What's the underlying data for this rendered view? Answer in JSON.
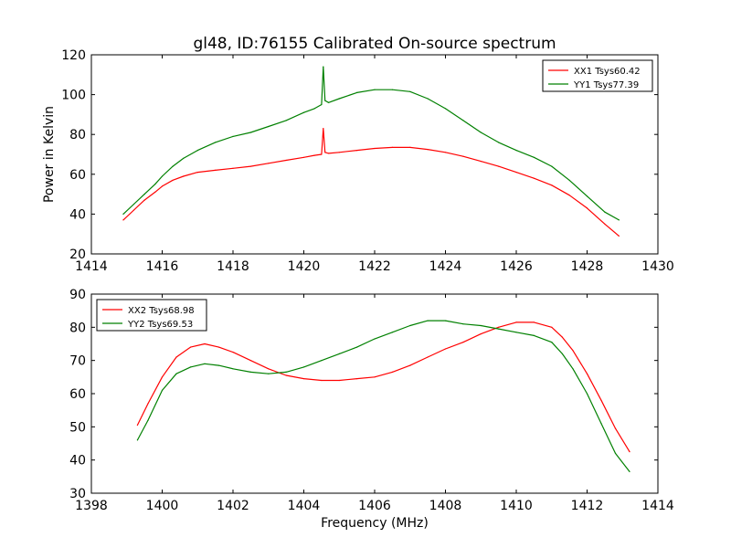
{
  "figure": {
    "title": "gl48, ID:76155 Calibrated On-source spectrum",
    "shared_xlabel": "Frequency (MHz)",
    "colors": {
      "XX": "#ff0000",
      "YY": "#008000"
    }
  },
  "chart_data": [
    {
      "type": "line",
      "title": "gl48, ID:76155 Calibrated On-source spectrum",
      "xlabel": "",
      "ylabel": "Power in Kelvin",
      "xlim": [
        1414,
        1430
      ],
      "ylim": [
        20,
        120
      ],
      "xticks": [
        1414,
        1416,
        1418,
        1420,
        1422,
        1424,
        1426,
        1428,
        1430
      ],
      "yticks": [
        20,
        40,
        60,
        80,
        100,
        120
      ],
      "grid": false,
      "legend": "top-right",
      "series": [
        {
          "name": "XX1 Tsys60.42",
          "color": "#ff0000",
          "x": [
            1414.9,
            1415.2,
            1415.5,
            1415.8,
            1416.0,
            1416.3,
            1416.6,
            1417.0,
            1417.5,
            1418.0,
            1418.5,
            1419.0,
            1419.5,
            1420.0,
            1420.3,
            1420.5,
            1420.55,
            1420.6,
            1420.7,
            1421.0,
            1421.5,
            1422.0,
            1422.5,
            1423.0,
            1423.5,
            1424.0,
            1424.5,
            1425.0,
            1425.5,
            1426.0,
            1426.5,
            1427.0,
            1427.5,
            1428.0,
            1428.5,
            1428.9
          ],
          "y": [
            37,
            42,
            47,
            51,
            54,
            57,
            59,
            61,
            62,
            63,
            64,
            65.5,
            67,
            68.5,
            69.5,
            70,
            83,
            71,
            70.5,
            71,
            72,
            73,
            73.5,
            73.5,
            72.5,
            71,
            69,
            66.5,
            64,
            61,
            58,
            54.5,
            49.5,
            43,
            35,
            29
          ],
          "labels": []
        },
        {
          "name": "YY1 Tsys77.39",
          "color": "#008000",
          "x": [
            1414.9,
            1415.2,
            1415.5,
            1415.8,
            1416.0,
            1416.3,
            1416.6,
            1417.0,
            1417.5,
            1418.0,
            1418.5,
            1419.0,
            1419.5,
            1420.0,
            1420.3,
            1420.5,
            1420.55,
            1420.6,
            1420.7,
            1421.0,
            1421.5,
            1422.0,
            1422.5,
            1423.0,
            1423.5,
            1424.0,
            1424.5,
            1425.0,
            1425.5,
            1426.0,
            1426.5,
            1427.0,
            1427.5,
            1428.0,
            1428.5,
            1428.9
          ],
          "y": [
            40,
            45,
            50,
            55,
            59,
            64,
            68,
            72,
            76,
            79,
            81,
            84,
            87,
            91,
            93,
            95,
            114,
            97,
            96,
            98,
            101,
            102.5,
            102.5,
            101.5,
            98,
            93,
            87,
            81,
            76,
            72,
            68.5,
            64,
            57,
            49,
            41,
            37
          ],
          "labels": []
        }
      ]
    },
    {
      "type": "line",
      "title": "",
      "xlabel": "Frequency (MHz)",
      "ylabel": "",
      "xlim": [
        1398,
        1414
      ],
      "ylim": [
        30,
        90
      ],
      "xticks": [
        1398,
        1400,
        1402,
        1404,
        1406,
        1408,
        1410,
        1412,
        1414
      ],
      "yticks": [
        30,
        40,
        50,
        60,
        70,
        80,
        90
      ],
      "grid": false,
      "legend": "top-left",
      "series": [
        {
          "name": "XX2 Tsys68.98",
          "color": "#ff0000",
          "x": [
            1399.3,
            1399.6,
            1400.0,
            1400.4,
            1400.8,
            1401.2,
            1401.6,
            1402.0,
            1402.5,
            1403.0,
            1403.5,
            1404.0,
            1404.5,
            1405.0,
            1405.5,
            1406.0,
            1406.5,
            1407.0,
            1407.5,
            1408.0,
            1408.5,
            1409.0,
            1409.5,
            1410.0,
            1410.5,
            1411.0,
            1411.3,
            1411.6,
            1412.0,
            1412.4,
            1412.8,
            1413.2
          ],
          "y": [
            50.5,
            57,
            65,
            71,
            74,
            75,
            74,
            72.5,
            70,
            67.5,
            65.5,
            64.5,
            64,
            64,
            64.5,
            65,
            66.5,
            68.5,
            71,
            73.5,
            75.5,
            78,
            80,
            81.5,
            81.5,
            80,
            77,
            73,
            66,
            58,
            49.5,
            42.5
          ],
          "labels": []
        },
        {
          "name": "YY2 Tsys69.53",
          "color": "#008000",
          "x": [
            1399.3,
            1399.6,
            1400.0,
            1400.4,
            1400.8,
            1401.2,
            1401.6,
            1402.0,
            1402.5,
            1403.0,
            1403.5,
            1404.0,
            1404.5,
            1405.0,
            1405.5,
            1406.0,
            1406.5,
            1407.0,
            1407.5,
            1408.0,
            1408.5,
            1409.0,
            1409.5,
            1410.0,
            1410.5,
            1411.0,
            1411.3,
            1411.6,
            1412.0,
            1412.4,
            1412.8,
            1413.2
          ],
          "y": [
            46,
            52,
            61,
            66,
            68,
            69,
            68.5,
            67.5,
            66.5,
            66,
            66.5,
            68,
            70,
            72,
            74,
            76.5,
            78.5,
            80.5,
            82,
            82,
            81,
            80.5,
            79.5,
            78.5,
            77.5,
            75.5,
            72,
            67.5,
            60,
            51,
            42,
            36.5
          ],
          "labels": []
        }
      ]
    }
  ]
}
